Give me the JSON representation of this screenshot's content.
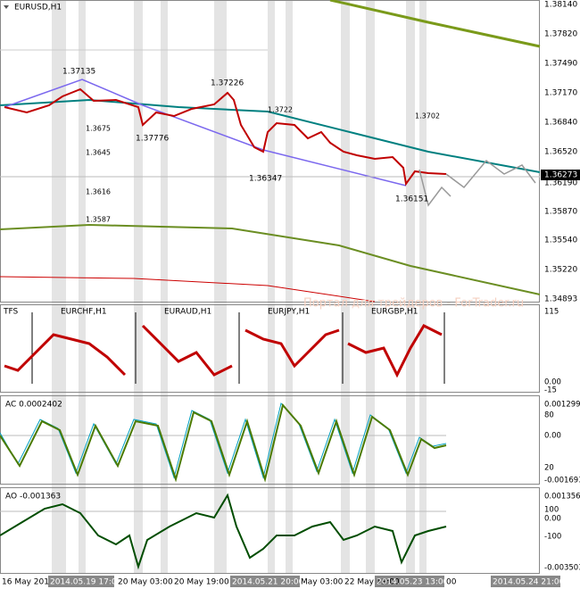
{
  "main": {
    "symbol": "EURUSD,H1",
    "price_axis": [
      "1.38140",
      "1.37820",
      "1.37490",
      "1.37170",
      "1.36840",
      "1.36520",
      "1.36190",
      "1.35870",
      "1.35540",
      "1.35220",
      "1.34893"
    ],
    "current_price": "1.36273",
    "annotations": [
      "1.37135",
      "1.37226",
      "1.37776",
      "1.36347",
      "1.36151"
    ],
    "levels": [
      "1.3675",
      "1.3645",
      "1.3616",
      "1.3587",
      "1.3722",
      "1.3702"
    ],
    "watermark": "Портал для трейдеров - ForTrader.ru"
  },
  "tfs": {
    "label": "TFS",
    "symbols": [
      "EURCHF,H1",
      "EURAUD,H1",
      "EURJPY,H1",
      "EURGBP,H1"
    ],
    "axis": [
      "115",
      "0.00",
      "-15"
    ]
  },
  "ac": {
    "label": "AC 0.0002402",
    "axis": [
      "0.0012994",
      "80",
      "0.00",
      "20",
      "-0.001693"
    ]
  },
  "ao": {
    "label": "AO -0.001363",
    "axis": [
      "0.001356",
      "100",
      "0.00",
      "-100",
      "-0.003503"
    ]
  },
  "time_axis": [
    "16 May 201",
    "2014.05.19 17:00",
    "20 May 03:00",
    "20 May 19:00",
    "2014.05.21 20:00",
    "May 03:00",
    "22 May 19:00",
    "2014.05.23 13:00",
    "00",
    "2014.05.24 21:00"
  ]
}
